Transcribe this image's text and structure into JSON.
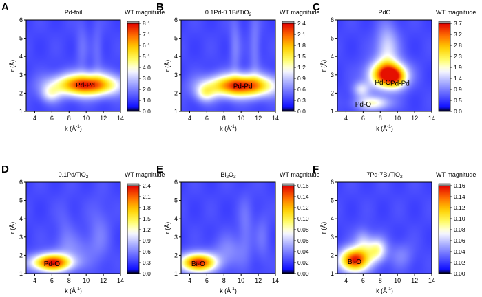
{
  "chart_data": [
    {
      "letter": "A",
      "type": "heatmap",
      "title": "Pd-foil",
      "xlabel": "k (Å",
      "xlabel_sup": "-1",
      "xlabel_end": ")",
      "ylabel": "r (Å)",
      "xlim": [
        3,
        14
      ],
      "ylim": [
        1,
        6
      ],
      "xticks": [
        "4",
        "6",
        "8",
        "10",
        "12",
        "14"
      ],
      "yticks": [
        "1",
        "2",
        "3",
        "4",
        "5",
        "6"
      ],
      "colorbar_label": "WT magnitude",
      "colorbar_ticks": [
        "0.0",
        "1.0",
        "2.0",
        "3.0",
        "4.0",
        "5.1",
        "6.1",
        "7.1",
        "8.1"
      ],
      "blobs": [
        {
          "k": 10.0,
          "r": 2.45,
          "sk": 2.6,
          "sr": 0.42,
          "v": 1.0
        },
        {
          "k": 5.8,
          "r": 1.95,
          "sk": 0.8,
          "sr": 0.35,
          "v": 0.28
        },
        {
          "k": 9.5,
          "r": 4.4,
          "sk": 0.5,
          "sr": 1.2,
          "v": 0.08
        },
        {
          "k": 11.3,
          "r": 4.3,
          "sk": 0.45,
          "sr": 1.1,
          "v": 0.08
        }
      ],
      "labels": [
        {
          "text": "Pd-Pd",
          "k": 9.9,
          "r": 2.45
        }
      ]
    },
    {
      "letter": "B",
      "type": "heatmap",
      "title": "0.1Pd-0.1Bi/TiO",
      "title_sub": "2",
      "xlabel": "k (Å",
      "xlabel_sup": "-1",
      "xlabel_end": ")",
      "ylabel": "r (Å)",
      "xlim": [
        3,
        14
      ],
      "ylim": [
        1,
        6
      ],
      "xticks": [
        "4",
        "6",
        "8",
        "10",
        "12",
        "14"
      ],
      "yticks": [
        "1",
        "2",
        "3",
        "4",
        "5",
        "6"
      ],
      "colorbar_label": "WT magnitude",
      "colorbar_ticks": [
        "0.0",
        "0.3",
        "0.6",
        "0.9",
        "1.2",
        "1.5",
        "1.8",
        "2.1",
        "2.4"
      ],
      "blobs": [
        {
          "k": 10.0,
          "r": 2.4,
          "sk": 2.7,
          "sr": 0.42,
          "v": 1.0
        },
        {
          "k": 5.8,
          "r": 2.0,
          "sk": 0.8,
          "sr": 0.35,
          "v": 0.33
        },
        {
          "k": 9.3,
          "r": 4.5,
          "sk": 0.45,
          "sr": 1.3,
          "v": 0.12
        },
        {
          "k": 11.6,
          "r": 4.5,
          "sk": 0.45,
          "sr": 1.3,
          "v": 0.12
        }
      ],
      "labels": [
        {
          "text": "Pd-Pd",
          "k": 10.2,
          "r": 2.4
        }
      ]
    },
    {
      "letter": "C",
      "type": "heatmap",
      "title": "PdO",
      "xlabel": "k (Å",
      "xlabel_sup": "-1",
      "xlabel_end": ")",
      "ylabel": "r (Å)",
      "xlim": [
        3,
        14
      ],
      "ylim": [
        1,
        6
      ],
      "xticks": [
        "4",
        "6",
        "8",
        "10",
        "12",
        "14"
      ],
      "yticks": [
        "1",
        "2",
        "3",
        "4",
        "5",
        "6"
      ],
      "colorbar_label": "WT magnitude",
      "colorbar_ticks": [
        "0.0",
        "0.5",
        "0.9",
        "1.4",
        "1.9",
        "2.3",
        "2.8",
        "3.2",
        "3.7"
      ],
      "blobs": [
        {
          "k": 8.8,
          "r": 3.0,
          "sk": 1.4,
          "sr": 0.5,
          "v": 1.0
        },
        {
          "k": 10.0,
          "r": 2.85,
          "sk": 0.8,
          "sr": 0.4,
          "v": 0.35
        },
        {
          "k": 7.2,
          "r": 1.45,
          "sk": 1.4,
          "sr": 0.28,
          "v": 0.42
        },
        {
          "k": 8.8,
          "r": 4.4,
          "sk": 0.9,
          "sr": 0.9,
          "v": 0.32
        },
        {
          "k": 5.8,
          "r": 2.2,
          "sk": 0.7,
          "sr": 0.3,
          "v": 0.3
        }
      ],
      "labels": [
        {
          "text": "Pd-O",
          "k": 8.3,
          "r": 2.6
        },
        {
          "text": "Pd-Pd",
          "k": 10.3,
          "r": 2.55
        },
        {
          "text": "Pd-O",
          "k": 6.0,
          "r": 1.4
        }
      ]
    },
    {
      "letter": "D",
      "type": "heatmap",
      "title": "0.1Pd/TiO",
      "title_sub": "2",
      "xlabel": "k (Å",
      "xlabel_sup": "-1",
      "xlabel_end": ")",
      "ylabel": "r (Å)",
      "xlim": [
        3,
        14
      ],
      "ylim": [
        1,
        6
      ],
      "xticks": [
        "4",
        "6",
        "8",
        "10",
        "12",
        "14"
      ],
      "yticks": [
        "1",
        "2",
        "3",
        "4",
        "5",
        "6"
      ],
      "colorbar_label": "WT magnitude",
      "colorbar_ticks": [
        "0.0",
        "0.3",
        "0.6",
        "0.9",
        "1.2",
        "1.5",
        "1.8",
        "2.1",
        "2.4"
      ],
      "blobs": [
        {
          "k": 6.0,
          "r": 1.6,
          "sk": 1.6,
          "sr": 0.33,
          "v": 1.0
        },
        {
          "k": 8.5,
          "r": 2.3,
          "sk": 1.6,
          "sr": 0.6,
          "v": 0.12
        },
        {
          "k": 11.5,
          "r": 3.2,
          "sk": 0.9,
          "sr": 1.2,
          "v": 0.1
        },
        {
          "k": 7.5,
          "r": 3.5,
          "sk": 0.7,
          "sr": 1.0,
          "v": 0.06
        }
      ],
      "labels": [
        {
          "text": "Pd-O",
          "k": 6.0,
          "r": 1.55
        }
      ]
    },
    {
      "letter": "E",
      "type": "heatmap",
      "title": "Bi",
      "title_sub": "2",
      "title_end": "O",
      "title_sub2": "3",
      "xlabel": "k (Å",
      "xlabel_sup": "-1",
      "xlabel_end": ")",
      "ylabel": "r (Å)",
      "xlim": [
        3,
        14
      ],
      "ylim": [
        1,
        6
      ],
      "xticks": [
        "4",
        "6",
        "8",
        "10",
        "12",
        "14"
      ],
      "yticks": [
        "1",
        "2",
        "3",
        "4",
        "5",
        "6"
      ],
      "colorbar_label": "WT magnitude",
      "colorbar_ticks": [
        "0.00",
        "0.02",
        "0.04",
        "0.06",
        "0.08",
        "0.10",
        "0.12",
        "0.14",
        "0.16"
      ],
      "blobs": [
        {
          "k": 5.0,
          "r": 1.6,
          "sk": 1.4,
          "sr": 0.35,
          "v": 1.0
        },
        {
          "k": 8.5,
          "r": 2.2,
          "sk": 1.3,
          "sr": 0.6,
          "v": 0.14
        },
        {
          "k": 10.5,
          "r": 3.5,
          "sk": 0.6,
          "sr": 1.2,
          "v": 0.1
        },
        {
          "k": 12.5,
          "r": 3.0,
          "sk": 0.6,
          "sr": 1.0,
          "v": 0.08
        }
      ],
      "labels": [
        {
          "text": "Bi-O",
          "k": 5.0,
          "r": 1.55
        }
      ]
    },
    {
      "letter": "F",
      "type": "heatmap",
      "title": "7Pd-7Bi/TiO",
      "title_sub": "2",
      "xlabel": "k (Å",
      "xlabel_sup": "-1",
      "xlabel_end": ")",
      "ylabel": "r (Å)",
      "xlim": [
        3,
        14
      ],
      "ylim": [
        1,
        6
      ],
      "xticks": [
        "4",
        "6",
        "8",
        "10",
        "12",
        "14"
      ],
      "yticks": [
        "1",
        "2",
        "3",
        "4",
        "5",
        "6"
      ],
      "colorbar_label": "WT magnitude",
      "colorbar_ticks": [
        "0.00",
        "0.02",
        "0.04",
        "0.06",
        "0.08",
        "0.10",
        "0.12",
        "0.14",
        "0.16"
      ],
      "blobs": [
        {
          "k": 5.0,
          "r": 1.75,
          "sk": 1.2,
          "sr": 0.45,
          "v": 1.0
        },
        {
          "k": 7.6,
          "r": 2.3,
          "sk": 0.8,
          "sr": 0.45,
          "v": 0.45
        },
        {
          "k": 6.0,
          "r": 2.7,
          "sk": 0.7,
          "sr": 0.5,
          "v": 0.25
        },
        {
          "k": 10.5,
          "r": 2.0,
          "sk": 1.0,
          "sr": 0.5,
          "v": 0.12
        }
      ],
      "labels": [
        {
          "text": "Bi-O",
          "k": 5.0,
          "r": 1.65
        }
      ]
    }
  ]
}
